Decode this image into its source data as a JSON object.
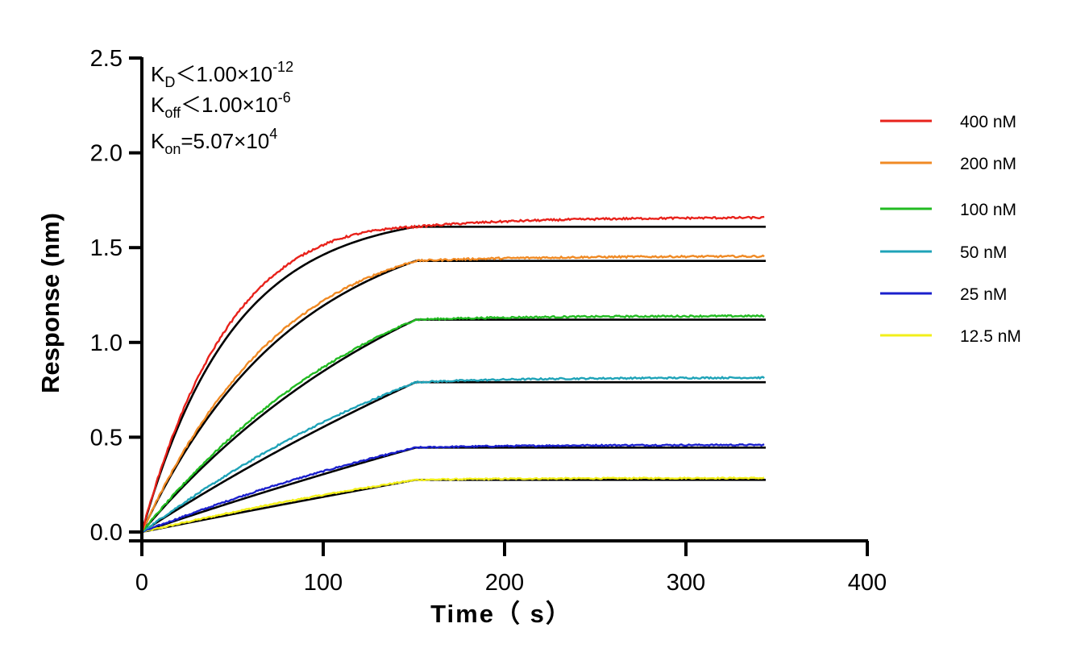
{
  "chart_data": {
    "type": "line",
    "xlabel": "Time（ s）",
    "ylabel": "Response (nm)",
    "xlim": [
      0,
      400
    ],
    "ylim": [
      0,
      2.5
    ],
    "x_ticks": [
      "0",
      "100",
      "200",
      "300",
      "400"
    ],
    "y_ticks": [
      "0.0",
      "0.5",
      "1.0",
      "1.5",
      "2.0",
      "2.5"
    ],
    "grid": false,
    "legend_position": "right",
    "association_end_s": 151,
    "end_s": 344,
    "annotations": {
      "kd": {
        "sym": "K",
        "sub": "D",
        "text": "＜1.00×10",
        "sup": "-12"
      },
      "koff": {
        "sym": "K",
        "sub": "off",
        "text": "＜1.00×10",
        "sup": "-6"
      },
      "kon": {
        "sym": "K",
        "sub": "on",
        "text": "=5.07×10",
        "sup": "4"
      }
    },
    "fit_color": "#000000",
    "series": [
      {
        "name": "400 nM",
        "color": "#e8221b",
        "plateau": 1.61,
        "end_value": 1.66,
        "curvature": 3.0
      },
      {
        "name": "200 nM",
        "color": "#f08a24",
        "plateau": 1.43,
        "end_value": 1.455,
        "curvature": 1.8
      },
      {
        "name": "100 nM",
        "color": "#22bb22",
        "plateau": 1.12,
        "end_value": 1.14,
        "curvature": 0.9
      },
      {
        "name": "50 nM",
        "color": "#1fa3b8",
        "plateau": 0.79,
        "end_value": 0.815,
        "curvature": 0.35
      },
      {
        "name": "25 nM",
        "color": "#1a1fcc",
        "plateau": 0.445,
        "end_value": 0.46,
        "curvature": 0.2
      },
      {
        "name": "12.5 nM",
        "color": "#f2ef1a",
        "plateau": 0.275,
        "end_value": 0.285,
        "curvature": 0.1
      }
    ]
  }
}
